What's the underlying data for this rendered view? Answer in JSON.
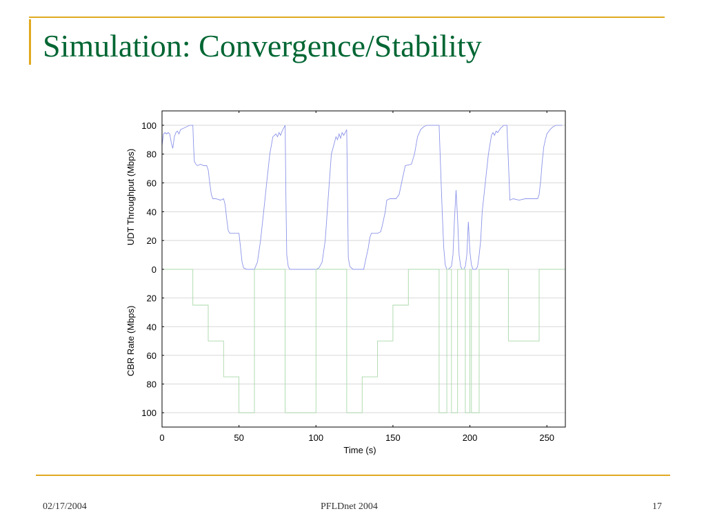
{
  "slide": {
    "title": "Simulation: Convergence/Stability",
    "footer": {
      "date": "02/17/2004",
      "event": "PFLDnet 2004",
      "page": "17"
    },
    "colors": {
      "title": "#006633",
      "accent": "#e0a91e"
    }
  },
  "chart_data": {
    "type": "line",
    "xlabel": "Time (s)",
    "upper_ylabel": "UDT Throughput (Mbps)",
    "lower_ylabel": "CBR Rate (Mbps)",
    "xlim": [
      0,
      262
    ],
    "xticks": [
      0,
      50,
      100,
      150,
      200,
      250
    ],
    "upper_ylim": [
      0,
      110
    ],
    "upper_yticks": [
      0,
      20,
      40,
      60,
      80,
      100
    ],
    "lower_ylim": [
      0,
      110
    ],
    "lower_yticks": [
      20,
      40,
      60,
      80,
      100
    ],
    "lower_axis_inverted": true,
    "grid": true,
    "series": [
      {
        "panel": "upper",
        "color": "#8b93e8",
        "points": [
          [
            0,
            86
          ],
          [
            1,
            94
          ],
          [
            2,
            95
          ],
          [
            3,
            94
          ],
          [
            4,
            95
          ],
          [
            5,
            94
          ],
          [
            6,
            88
          ],
          [
            7,
            84
          ],
          [
            8,
            92
          ],
          [
            9,
            95
          ],
          [
            10,
            96
          ],
          [
            11,
            94
          ],
          [
            12,
            97
          ],
          [
            14,
            98
          ],
          [
            16,
            99
          ],
          [
            18,
            100
          ],
          [
            20,
            100
          ],
          [
            20.5,
            85
          ],
          [
            21,
            75
          ],
          [
            22,
            73
          ],
          [
            23,
            72
          ],
          [
            25,
            73
          ],
          [
            27,
            72
          ],
          [
            29,
            72
          ],
          [
            30,
            69
          ],
          [
            31,
            60
          ],
          [
            32,
            52
          ],
          [
            33,
            49
          ],
          [
            35,
            49
          ],
          [
            38,
            48
          ],
          [
            40,
            49
          ],
          [
            41,
            45
          ],
          [
            42,
            35
          ],
          [
            43,
            27
          ],
          [
            44,
            25
          ],
          [
            48,
            25
          ],
          [
            50,
            25
          ],
          [
            51,
            15
          ],
          [
            52,
            5
          ],
          [
            53,
            1
          ],
          [
            55,
            0
          ],
          [
            58,
            0
          ],
          [
            60,
            0
          ],
          [
            62,
            5
          ],
          [
            64,
            20
          ],
          [
            66,
            40
          ],
          [
            68,
            60
          ],
          [
            70,
            80
          ],
          [
            72,
            92
          ],
          [
            74,
            94
          ],
          [
            75,
            92
          ],
          [
            76,
            95
          ],
          [
            77,
            93
          ],
          [
            78,
            96
          ],
          [
            79,
            98
          ],
          [
            80,
            100
          ],
          [
            80.5,
            50
          ],
          [
            81,
            10
          ],
          [
            82,
            2
          ],
          [
            83,
            0
          ],
          [
            90,
            0
          ],
          [
            95,
            0
          ],
          [
            100,
            0
          ],
          [
            102,
            1
          ],
          [
            104,
            5
          ],
          [
            106,
            20
          ],
          [
            108,
            50
          ],
          [
            110,
            80
          ],
          [
            112,
            88
          ],
          [
            113,
            92
          ],
          [
            114,
            90
          ],
          [
            115,
            94
          ],
          [
            116,
            91
          ],
          [
            117,
            95
          ],
          [
            118,
            93
          ],
          [
            120,
            97
          ],
          [
            120.5,
            50
          ],
          [
            121,
            8
          ],
          [
            122,
            2
          ],
          [
            124,
            0
          ],
          [
            130,
            0
          ],
          [
            131,
            0
          ],
          [
            132,
            5
          ],
          [
            134,
            15
          ],
          [
            135,
            22
          ],
          [
            136,
            25
          ],
          [
            140,
            25
          ],
          [
            142,
            26
          ],
          [
            143,
            30
          ],
          [
            145,
            40
          ],
          [
            146,
            48
          ],
          [
            148,
            49
          ],
          [
            152,
            49
          ],
          [
            154,
            52
          ],
          [
            156,
            62
          ],
          [
            158,
            72
          ],
          [
            162,
            73
          ],
          [
            164,
            80
          ],
          [
            166,
            92
          ],
          [
            168,
            97
          ],
          [
            170,
            99
          ],
          [
            172,
            100
          ],
          [
            180,
            100
          ],
          [
            181,
            70
          ],
          [
            182,
            40
          ],
          [
            183,
            15
          ],
          [
            184,
            3
          ],
          [
            185,
            0
          ],
          [
            186,
            0
          ],
          [
            188,
            2
          ],
          [
            189,
            10
          ],
          [
            190,
            35
          ],
          [
            191,
            55
          ],
          [
            192,
            35
          ],
          [
            193,
            10
          ],
          [
            194,
            2
          ],
          [
            195,
            0
          ],
          [
            196,
            0
          ],
          [
            197,
            2
          ],
          [
            198,
            10
          ],
          [
            199,
            33
          ],
          [
            200,
            12
          ],
          [
            201,
            3
          ],
          [
            202,
            0
          ],
          [
            204,
            0
          ],
          [
            205,
            2
          ],
          [
            206,
            10
          ],
          [
            207,
            20
          ],
          [
            208,
            40
          ],
          [
            210,
            60
          ],
          [
            212,
            80
          ],
          [
            214,
            93
          ],
          [
            215,
            95
          ],
          [
            216,
            93
          ],
          [
            217,
            96
          ],
          [
            218,
            95
          ],
          [
            220,
            98
          ],
          [
            222,
            100
          ],
          [
            224,
            100
          ],
          [
            225,
            75
          ],
          [
            226,
            48
          ],
          [
            228,
            49
          ],
          [
            232,
            48
          ],
          [
            236,
            49
          ],
          [
            240,
            49
          ],
          [
            244,
            49
          ],
          [
            245,
            52
          ],
          [
            246,
            62
          ],
          [
            247,
            75
          ],
          [
            248,
            85
          ],
          [
            249,
            90
          ],
          [
            250,
            94
          ],
          [
            252,
            97
          ],
          [
            254,
            99
          ],
          [
            256,
            100
          ],
          [
            258,
            100
          ],
          [
            260,
            100
          ]
        ]
      },
      {
        "panel": "lower",
        "color": "#a8d8a8",
        "points": [
          [
            0,
            0
          ],
          [
            20,
            0
          ],
          [
            20,
            25
          ],
          [
            30,
            25
          ],
          [
            30,
            50
          ],
          [
            40,
            50
          ],
          [
            40,
            75
          ],
          [
            50,
            75
          ],
          [
            50,
            100
          ],
          [
            60,
            100
          ],
          [
            60,
            0
          ],
          [
            80,
            0
          ],
          [
            80,
            100
          ],
          [
            100,
            100
          ],
          [
            100,
            0
          ],
          [
            120,
            0
          ],
          [
            120,
            100
          ],
          [
            130,
            100
          ],
          [
            130,
            75
          ],
          [
            140,
            75
          ],
          [
            140,
            50
          ],
          [
            150,
            50
          ],
          [
            150,
            25
          ],
          [
            160,
            25
          ],
          [
            160,
            0
          ],
          [
            180,
            0
          ],
          [
            180,
            100
          ],
          [
            185,
            100
          ],
          [
            185,
            0
          ],
          [
            188,
            0
          ],
          [
            188,
            100
          ],
          [
            192,
            100
          ],
          [
            192,
            0
          ],
          [
            197,
            0
          ],
          [
            197,
            100
          ],
          [
            200,
            100
          ],
          [
            200,
            0
          ],
          [
            201,
            0
          ],
          [
            201,
            100
          ],
          [
            206,
            100
          ],
          [
            206,
            0
          ],
          [
            225,
            0
          ],
          [
            225,
            50
          ],
          [
            245,
            50
          ],
          [
            245,
            0
          ],
          [
            262,
            0
          ]
        ]
      }
    ]
  }
}
